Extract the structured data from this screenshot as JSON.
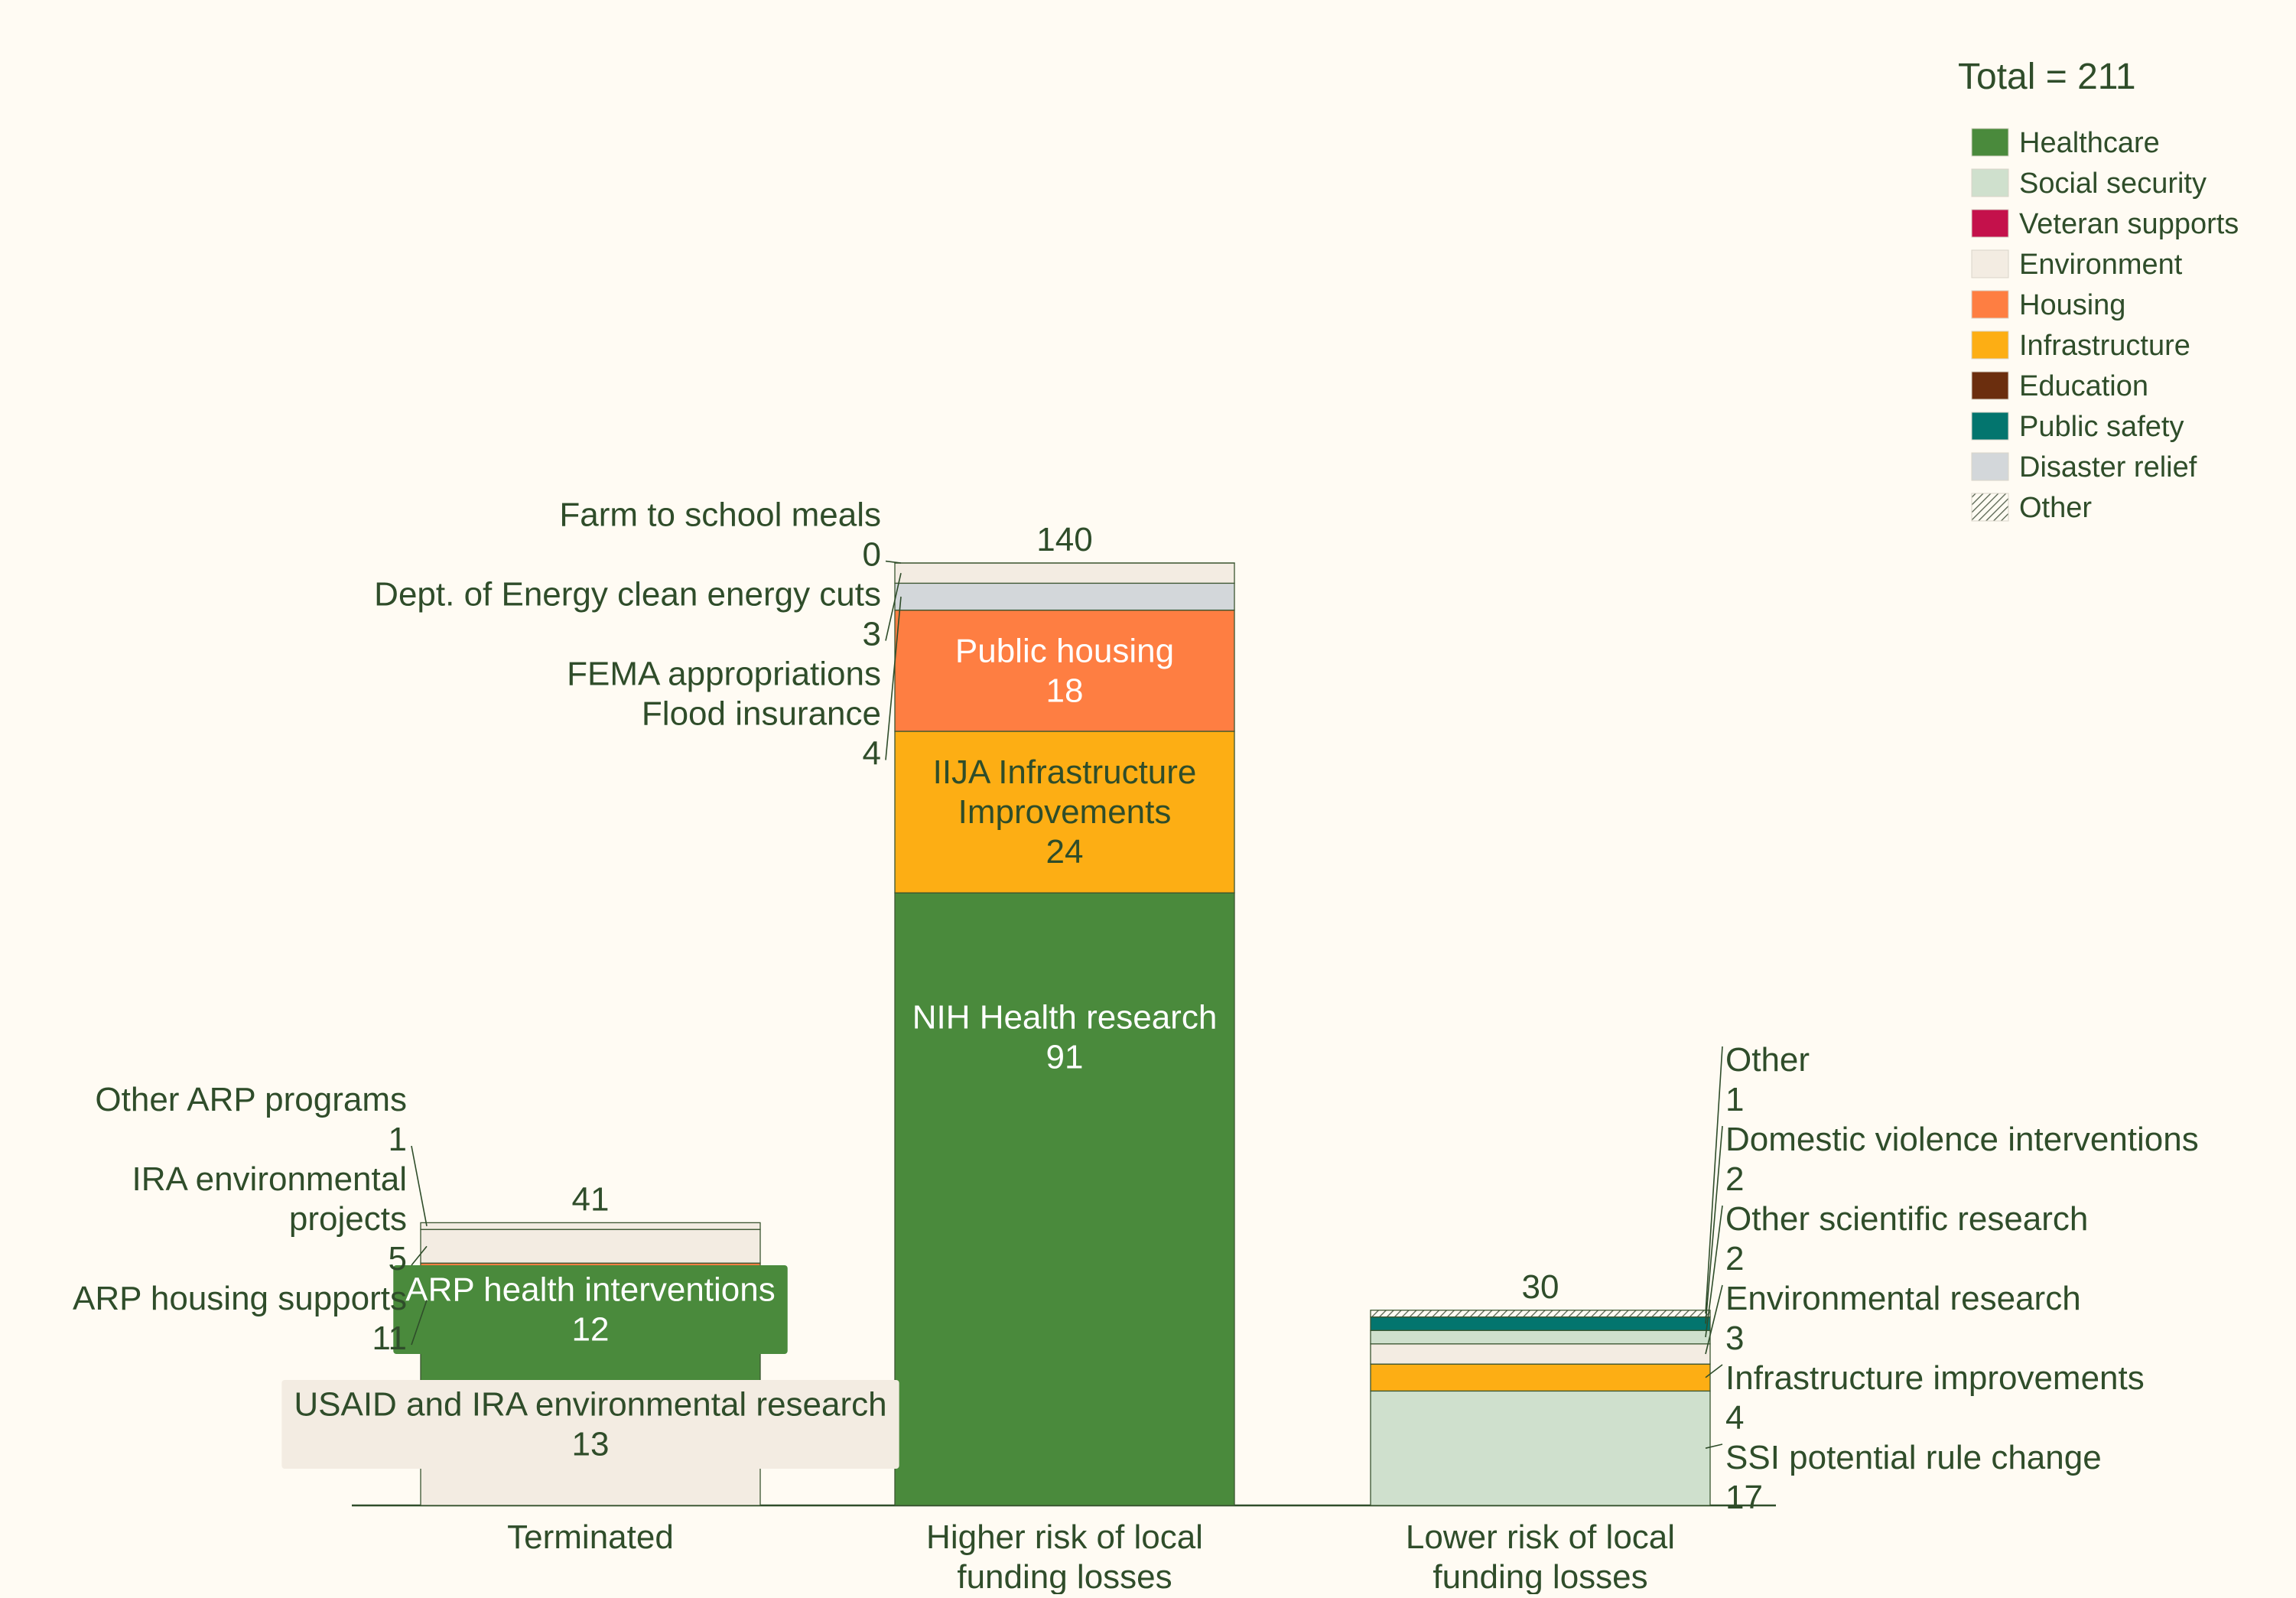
{
  "chart_data": {
    "type": "bar",
    "stacked": true,
    "categories": [
      "Terminated",
      "Higher risk of local funding losses",
      "Lower risk of local funding losses"
    ],
    "category_label_lines": [
      [
        "Terminated"
      ],
      [
        "Higher risk of local",
        "funding losses"
      ],
      [
        "Lower risk of local",
        "funding losses"
      ]
    ],
    "totals": [
      "41",
      "140",
      "30"
    ],
    "ylim": [
      0,
      140
    ],
    "grid": false,
    "colors": {
      "Healthcare": "#4a8a3c",
      "Social security": "#cfe0cd",
      "Veteran supports": "#c4114b",
      "Environment": "#f3ece2",
      "Housing": "#fe7e42",
      "Infrastructure": "#fdae14",
      "Education": "#6b2e0e",
      "Public safety": "#03756e",
      "Disaster relief": "#d3d7da",
      "Other": "#a3ad9c",
      "text": "#2f4d2a",
      "background": "#fffbf3",
      "baseline": "#2f4d2a"
    },
    "legend": {
      "title": "Total = 211",
      "position": "top-right",
      "items": [
        {
          "label": "Healthcare",
          "swatch": "Healthcare"
        },
        {
          "label": "Social security",
          "swatch": "Social security"
        },
        {
          "label": "Veteran supports",
          "swatch": "Veteran supports"
        },
        {
          "label": "Environment",
          "swatch": "Environment"
        },
        {
          "label": "Housing",
          "swatch": "Housing"
        },
        {
          "label": "Infrastructure",
          "swatch": "Infrastructure"
        },
        {
          "label": "Education",
          "swatch": "Education"
        },
        {
          "label": "Public safety",
          "swatch": "Public safety"
        },
        {
          "label": "Disaster relief",
          "swatch": "Disaster relief"
        },
        {
          "label": "Other",
          "swatch": "Other",
          "pattern": "hatch"
        }
      ]
    },
    "bars": [
      {
        "category": "Terminated",
        "segments": [
          {
            "label": "USAID and IRA environmental research",
            "value": 13,
            "value_text": "13",
            "group": "Environment",
            "label_mode": "inside"
          },
          {
            "label": "ARP health interventions",
            "value": 12,
            "value_text": "12",
            "group": "Healthcare",
            "label_mode": "inside"
          },
          {
            "label": "ARP housing supports",
            "value": 11,
            "value_text": "11",
            "group": "Housing",
            "label_mode": "side"
          },
          {
            "label": "IRA environmental projects",
            "label_lines": [
              "IRA environmental",
              "projects"
            ],
            "value": 5,
            "value_text": "5",
            "group": "Environment",
            "label_mode": "side"
          },
          {
            "label": "Other ARP programs",
            "value": 1,
            "value_text": "1",
            "group": "Environment",
            "label_mode": "side"
          }
        ]
      },
      {
        "category": "Higher risk of local funding losses",
        "segments": [
          {
            "label": "NIH Health research",
            "value": 91,
            "value_text": "91",
            "group": "Healthcare",
            "label_mode": "inside"
          },
          {
            "label": "IIJA Infrastructure Improvements",
            "label_lines": [
              "IIJA Infrastructure",
              "Improvements"
            ],
            "value": 24,
            "value_text": "24",
            "group": "Infrastructure",
            "label_mode": "inside"
          },
          {
            "label": "Public housing",
            "value": 18,
            "value_text": "18",
            "group": "Housing",
            "label_mode": "inside"
          },
          {
            "label": "FEMA appropriations / Flood insurance",
            "label_lines": [
              "FEMA appropriations",
              "Flood insurance"
            ],
            "value": 4,
            "value_text": "4",
            "group": "Disaster relief",
            "label_mode": "side"
          },
          {
            "label": "Dept. of Energy clean energy cuts",
            "value": 3,
            "value_text": "3",
            "group": "Environment",
            "label_mode": "side"
          },
          {
            "label": "Farm to school meals",
            "value": 0,
            "value_text": "0",
            "group": "Environment",
            "label_mode": "side"
          }
        ]
      },
      {
        "category": "Lower risk of local funding losses",
        "segments": [
          {
            "label": "SSI potential rule change",
            "value": 17,
            "value_text": "17",
            "group": "Social security",
            "label_mode": "side"
          },
          {
            "label": "Infrastructure improvements",
            "value": 4,
            "value_text": "4",
            "group": "Infrastructure",
            "label_mode": "side"
          },
          {
            "label": "Environmental research",
            "value": 3,
            "value_text": "3",
            "group": "Environment",
            "label_mode": "side"
          },
          {
            "label": "Other scientific research",
            "value": 2,
            "value_text": "2",
            "group": "Social security",
            "label_mode": "side"
          },
          {
            "label": "Domestic violence interventions",
            "value": 2,
            "value_text": "2",
            "group": "Public safety",
            "label_mode": "side"
          },
          {
            "label": "Other",
            "value": 1,
            "value_text": "1",
            "group": "Other",
            "label_mode": "side"
          }
        ]
      }
    ]
  }
}
